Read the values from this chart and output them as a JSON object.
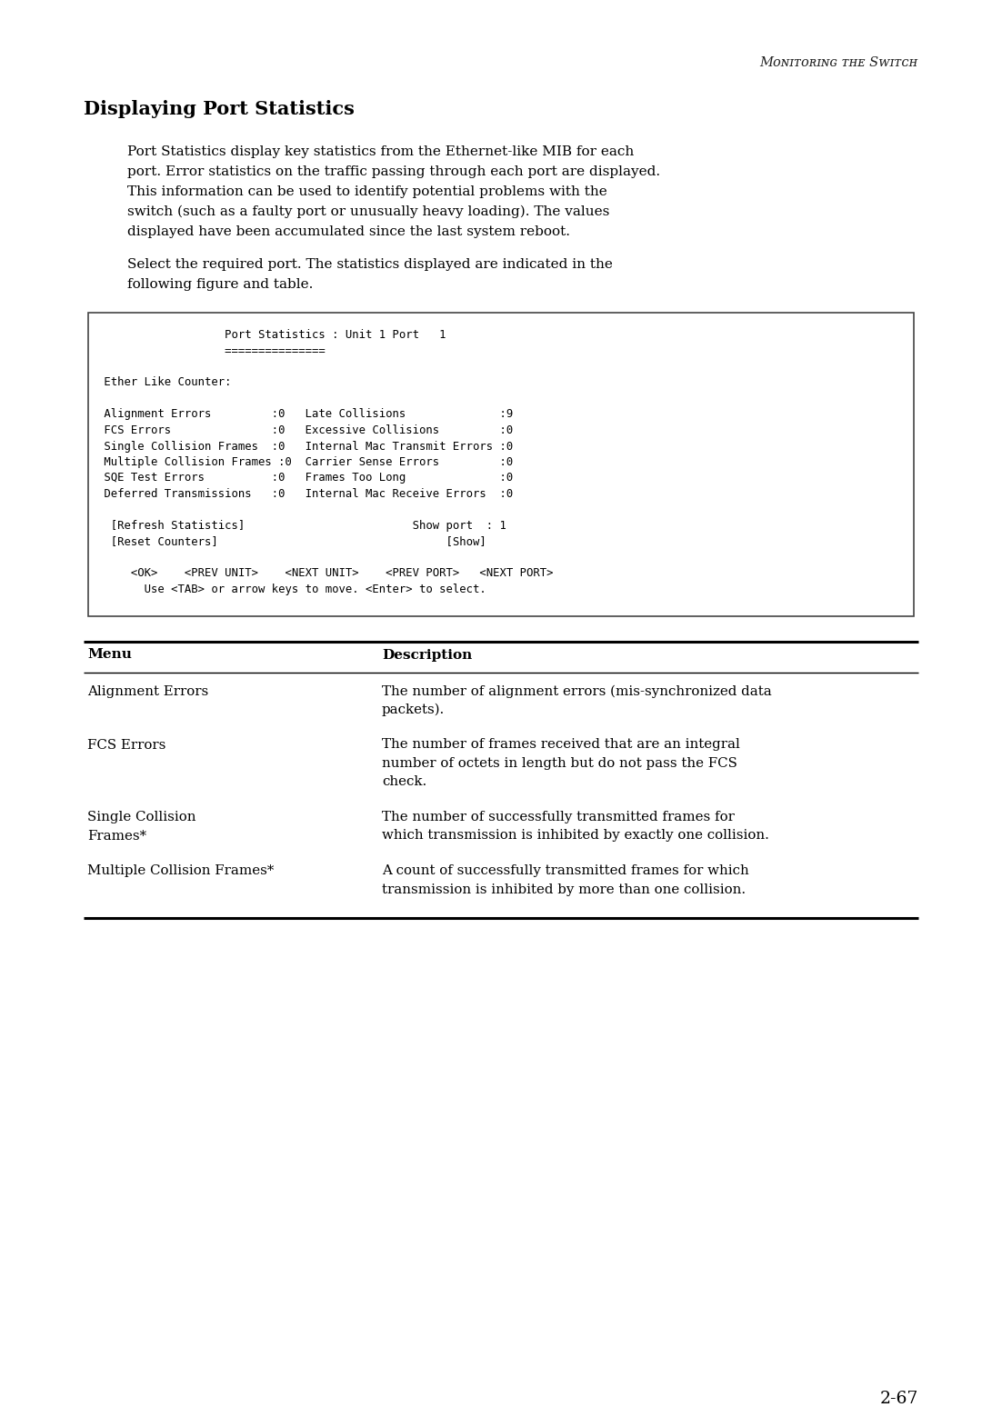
{
  "page_bg": "#ffffff",
  "header_text_raw": "Monitoring the Switch",
  "section_title": "Displaying Port Statistics",
  "para1_lines": [
    "Port Statistics display key statistics from the Ethernet-like MIB for each",
    "port. Error statistics on the traffic passing through each port are displayed.",
    "This information can be used to identify potential problems with the",
    "switch (such as a faulty port or unusually heavy loading). The values",
    "displayed have been accumulated since the last system reboot."
  ],
  "para2_lines": [
    "Select the required port. The statistics displayed are indicated in the",
    "following figure and table."
  ],
  "code_lines": [
    "                   Port Statistics : Unit 1 Port   1",
    "                   ===============",
    "",
    " Ether Like Counter:",
    "",
    " Alignment Errors         :0   Late Collisions              :9",
    " FCS Errors               :0   Excessive Collisions         :0",
    " Single Collision Frames  :0   Internal Mac Transmit Errors :0",
    " Multiple Collision Frames :0  Carrier Sense Errors         :0",
    " SQE Test Errors          :0   Frames Too Long              :0",
    " Deferred Transmissions   :0   Internal Mac Receive Errors  :0",
    "",
    "  [Refresh Statistics]                         Show port  : 1",
    "  [Reset Counters]                                  [Show]",
    "",
    "     <OK>    <PREV UNIT>    <NEXT UNIT>    <PREV PORT>   <NEXT PORT>",
    "       Use <TAB> or arrow keys to move. <Enter> to select."
  ],
  "table_col1_header": "Menu",
  "table_col2_header": "Description",
  "table_rows": [
    {
      "menu": [
        "Alignment Errors"
      ],
      "desc": [
        "The number of alignment errors (mis-synchronized data",
        "packets)."
      ]
    },
    {
      "menu": [
        "FCS Errors"
      ],
      "desc": [
        "The number of frames received that are an integral",
        "number of octets in length but do not pass the FCS",
        "check."
      ]
    },
    {
      "menu": [
        "Single Collision",
        "Frames*"
      ],
      "desc": [
        "The number of successfully transmitted frames for",
        "which transmission is inhibited by exactly one collision."
      ]
    },
    {
      "menu": [
        "Multiple Collision Frames*"
      ],
      "desc": [
        "A count of successfully transmitted frames for which",
        "transmission is inhibited by more than one collision."
      ]
    }
  ],
  "page_number": "2-67"
}
